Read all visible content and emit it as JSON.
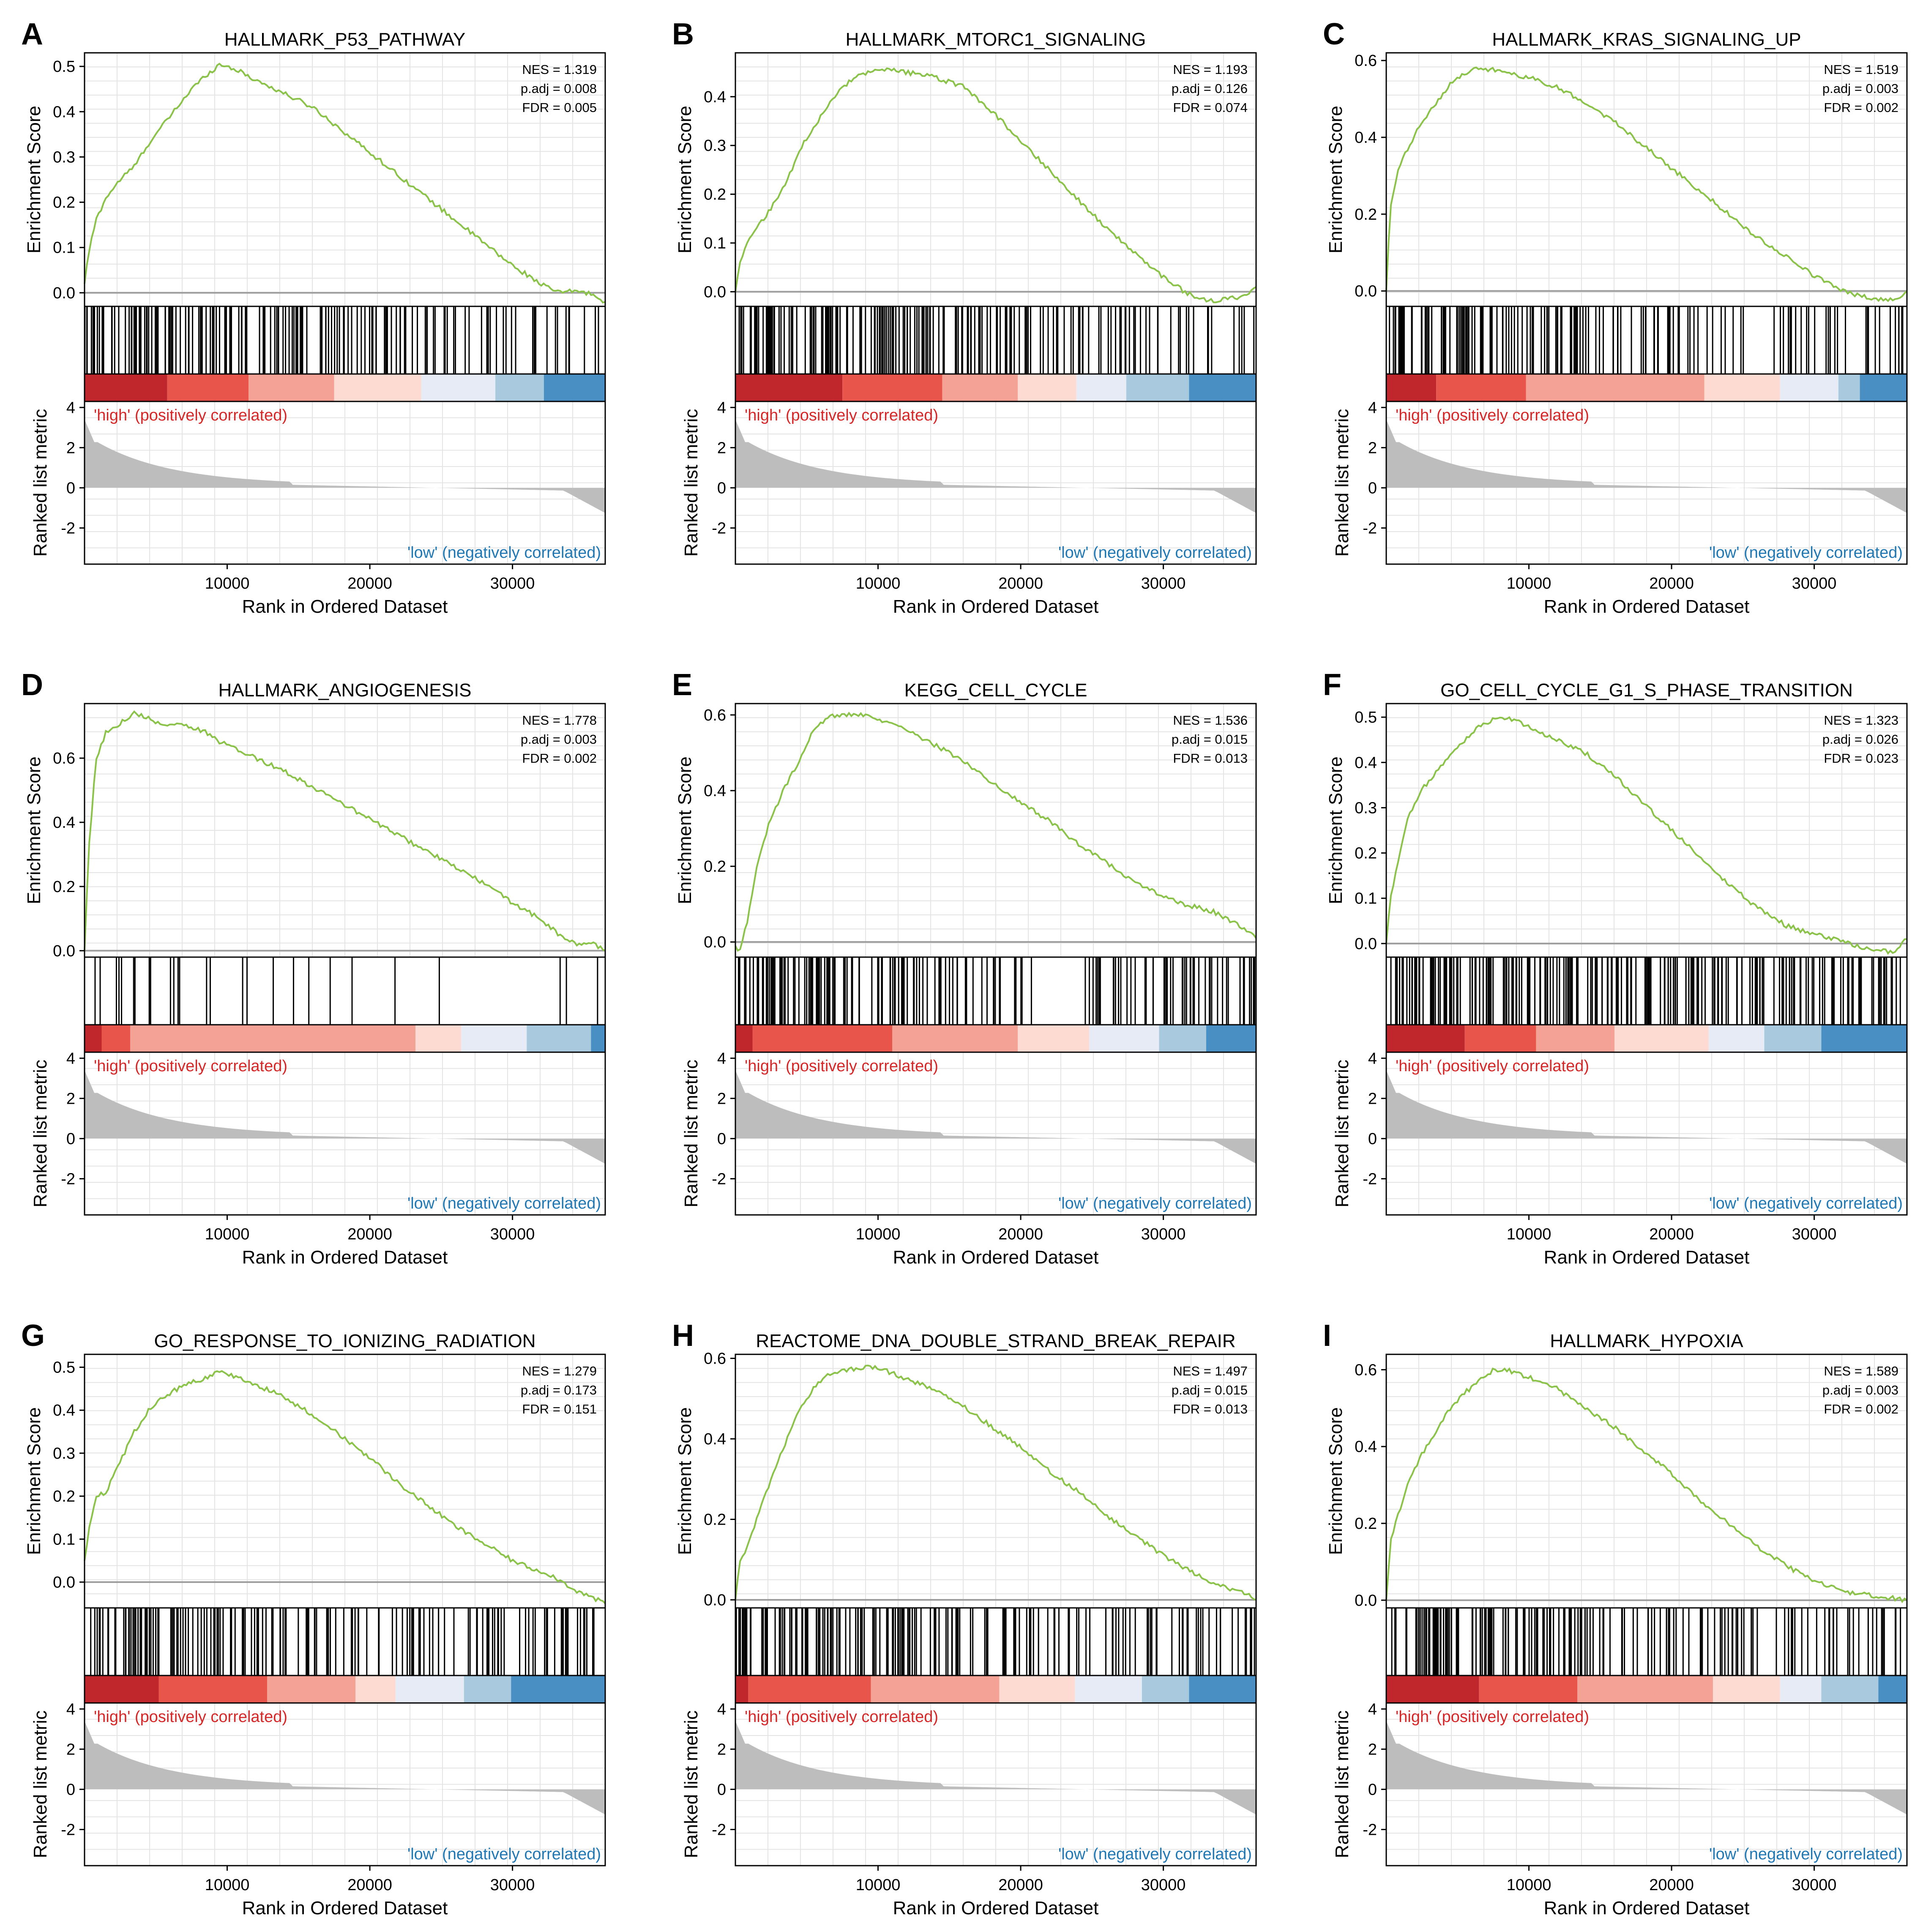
{
  "figure": {
    "xlabel": "Rank in Ordered Dataset",
    "ylabel_es": "Enrichment Score",
    "ylabel_rank": "Ranked list metric",
    "high_label": "'high' (positively correlated)",
    "low_label": "'low' (negatively correlated)",
    "x_ticks": [
      10000,
      20000,
      30000
    ],
    "x_max": 36500,
    "rank_ticks": [
      4,
      2,
      0,
      -2
    ],
    "rank_range": [
      -3.8,
      4.3
    ],
    "colors": {
      "es_line": "#8bc34a",
      "high_text": "#d62728",
      "low_text": "#1f77b4",
      "rank_fill": "#bdbdbd",
      "zero_line": "#9e9e9e"
    },
    "heat_colors": [
      "#c0272d",
      "#e8554b",
      "#f4a196",
      "#fddbd2",
      "#e6ebf5",
      "#a9c9de",
      "#4a8fc4"
    ]
  },
  "chart_data": [
    {
      "type": "line",
      "letter": "A",
      "title": "HALLMARK_P53_PATHWAY",
      "nes": "NES = 1.319",
      "padj": "p.adj = 0.008",
      "fdr": "FDR = 0.005",
      "ylim": [
        -0.03,
        0.53
      ],
      "yticks": [
        "0.0",
        "0.1",
        "0.2",
        "0.3",
        "0.4",
        "0.5"
      ],
      "x": [
        0,
        300,
        800,
        1500,
        2500,
        3500,
        4500,
        5500,
        6500,
        7500,
        8500,
        9500,
        10500,
        12000,
        14000,
        16000,
        18000,
        20000,
        22000,
        24000,
        26000,
        28000,
        30000,
        31500,
        32500,
        33500,
        34500,
        35500,
        36500
      ],
      "values": [
        0.02,
        0.09,
        0.16,
        0.21,
        0.25,
        0.28,
        0.33,
        0.37,
        0.41,
        0.45,
        0.48,
        0.505,
        0.495,
        0.47,
        0.44,
        0.41,
        0.36,
        0.31,
        0.26,
        0.21,
        0.16,
        0.11,
        0.06,
        0.03,
        0.01,
        0.0,
        0.005,
        -0.003,
        -0.02
      ],
      "hit_density": [
        0.95,
        0.9,
        0.85,
        0.75,
        0.7,
        0.6,
        0.5,
        0.4,
        0.3
      ],
      "heat_breaks": [
        0,
        5800,
        11500,
        17500,
        23600,
        28800,
        32200,
        36500
      ]
    },
    {
      "type": "line",
      "letter": "B",
      "title": "HALLMARK_MTORC1_SIGNALING",
      "nes": "NES = 1.193",
      "padj": "p.adj = 0.126",
      "fdr": "FDR = 0.074",
      "ylim": [
        -0.03,
        0.49
      ],
      "yticks": [
        "0.0",
        "0.1",
        "0.2",
        "0.3",
        "0.4"
      ],
      "x": [
        0,
        300,
        800,
        1500,
        2500,
        3500,
        4500,
        5500,
        6500,
        7500,
        8500,
        9500,
        10500,
        12000,
        14000,
        16000,
        18000,
        20000,
        22000,
        24000,
        26000,
        28000,
        30000,
        31500,
        32500,
        33500,
        34500,
        35500,
        36500
      ],
      "values": [
        0.0,
        0.06,
        0.1,
        0.13,
        0.17,
        0.22,
        0.29,
        0.34,
        0.38,
        0.42,
        0.44,
        0.45,
        0.455,
        0.45,
        0.44,
        0.42,
        0.37,
        0.31,
        0.25,
        0.19,
        0.13,
        0.08,
        0.03,
        0.0,
        -0.015,
        -0.02,
        -0.015,
        -0.01,
        0.01
      ],
      "hit_density": [
        1.0,
        0.95,
        0.9,
        0.8,
        0.7,
        0.6,
        0.5,
        0.4,
        0.3
      ],
      "heat_breaks": [
        0,
        7500,
        14500,
        19800,
        23900,
        27400,
        31800,
        36500
      ]
    },
    {
      "type": "line",
      "letter": "C",
      "title": "HALLMARK_KRAS_SIGNALING_UP",
      "nes": "NES = 1.519",
      "padj": "p.adj = 0.003",
      "fdr": "FDR = 0.002",
      "ylim": [
        -0.04,
        0.62
      ],
      "yticks": [
        "0.0",
        "0.2",
        "0.4",
        "0.6"
      ],
      "x": [
        0,
        300,
        800,
        1500,
        2500,
        3500,
        4500,
        5500,
        6500,
        7500,
        8500,
        9500,
        10500,
        12000,
        14000,
        16000,
        18000,
        20000,
        22000,
        24000,
        26000,
        28000,
        30000,
        31500,
        32500,
        33500,
        34500,
        35500,
        36500
      ],
      "values": [
        0.0,
        0.22,
        0.31,
        0.37,
        0.44,
        0.49,
        0.54,
        0.565,
        0.58,
        0.575,
        0.565,
        0.56,
        0.55,
        0.53,
        0.49,
        0.44,
        0.38,
        0.32,
        0.26,
        0.2,
        0.14,
        0.09,
        0.04,
        0.01,
        -0.005,
        -0.015,
        -0.02,
        -0.025,
        0.0
      ],
      "hit_density": [
        0.95,
        0.9,
        0.8,
        0.7,
        0.55,
        0.4,
        0.25,
        0.45,
        0.4
      ],
      "heat_breaks": [
        0,
        3500,
        9800,
        22300,
        27600,
        31700,
        33200,
        36500
      ]
    },
    {
      "type": "line",
      "letter": "D",
      "title": "HALLMARK_ANGIOGENESIS",
      "nes": "NES = 1.778",
      "padj": "p.adj = 0.003",
      "fdr": "FDR = 0.002",
      "ylim": [
        -0.02,
        0.77
      ],
      "yticks": [
        "0.0",
        "0.2",
        "0.4",
        "0.6"
      ],
      "x": [
        0,
        300,
        800,
        1500,
        2500,
        3500,
        4500,
        5500,
        6500,
        7500,
        8500,
        9500,
        10500,
        12000,
        14000,
        16000,
        18000,
        20000,
        22000,
        24000,
        26000,
        28000,
        30000,
        31500,
        32500,
        33500,
        34500,
        35500,
        36500
      ],
      "values": [
        0.0,
        0.32,
        0.59,
        0.68,
        0.71,
        0.74,
        0.725,
        0.7,
        0.71,
        0.695,
        0.68,
        0.65,
        0.63,
        0.6,
        0.56,
        0.51,
        0.46,
        0.41,
        0.36,
        0.31,
        0.26,
        0.21,
        0.15,
        0.11,
        0.08,
        0.04,
        0.02,
        0.025,
        0.0
      ],
      "hit_density": [
        0.3,
        0.2,
        0.15,
        0.12,
        0.08,
        0.03,
        0.02,
        0.0,
        0.1
      ],
      "heat_breaks": [
        0,
        1200,
        3200,
        23200,
        26400,
        31000,
        35500,
        36500
      ]
    },
    {
      "type": "line",
      "letter": "E",
      "title": "KEGG_CELL_CYCLE",
      "nes": "NES = 1.536",
      "padj": "p.adj = 0.015",
      "fdr": "FDR = 0.013",
      "ylim": [
        -0.04,
        0.63
      ],
      "yticks": [
        "0.0",
        "0.2",
        "0.4",
        "0.6"
      ],
      "x": [
        0,
        300,
        800,
        1500,
        2500,
        3500,
        4500,
        5500,
        6500,
        7500,
        8500,
        9500,
        10500,
        12000,
        14000,
        16000,
        18000,
        20000,
        22000,
        24000,
        26000,
        28000,
        30000,
        31500,
        32500,
        33500,
        34500,
        35500,
        36500
      ],
      "values": [
        -0.01,
        -0.025,
        0.05,
        0.2,
        0.33,
        0.41,
        0.48,
        0.56,
        0.595,
        0.6,
        0.6,
        0.595,
        0.58,
        0.56,
        0.52,
        0.48,
        0.42,
        0.37,
        0.32,
        0.26,
        0.21,
        0.16,
        0.12,
        0.1,
        0.09,
        0.08,
        0.06,
        0.04,
        0.01
      ],
      "hit_density": [
        1.0,
        0.95,
        0.85,
        0.65,
        0.45,
        0.05,
        0.55,
        0.7,
        0.6
      ],
      "heat_breaks": [
        0,
        1200,
        11000,
        19800,
        24800,
        29700,
        33000,
        36500
      ]
    },
    {
      "type": "line",
      "letter": "F",
      "title": "GO_CELL_CYCLE_G1_S_PHASE_TRANSITION",
      "nes": "NES = 1.323",
      "padj": "p.adj = 0.026",
      "fdr": "FDR = 0.023",
      "ylim": [
        -0.03,
        0.53
      ],
      "yticks": [
        "0.0",
        "0.1",
        "0.2",
        "0.3",
        "0.4",
        "0.5"
      ],
      "x": [
        0,
        300,
        800,
        1500,
        2500,
        3500,
        4500,
        5500,
        6500,
        7500,
        8500,
        9500,
        10500,
        12000,
        14000,
        16000,
        18000,
        20000,
        22000,
        24000,
        26000,
        28000,
        30000,
        31500,
        32500,
        33500,
        34500,
        35500,
        36500
      ],
      "values": [
        0.0,
        0.1,
        0.18,
        0.28,
        0.34,
        0.38,
        0.42,
        0.45,
        0.48,
        0.495,
        0.5,
        0.485,
        0.47,
        0.45,
        0.42,
        0.37,
        0.31,
        0.25,
        0.19,
        0.13,
        0.08,
        0.04,
        0.02,
        0.01,
        0.0,
        -0.01,
        -0.015,
        -0.02,
        0.01
      ],
      "hit_density": [
        1.0,
        1.0,
        0.95,
        0.9,
        0.85,
        0.8,
        0.75,
        0.7,
        0.7
      ],
      "heat_breaks": [
        0,
        5500,
        10500,
        16000,
        22600,
        26500,
        30500,
        36500
      ]
    },
    {
      "type": "line",
      "letter": "G",
      "title": "GO_RESPONSE_TO_IONIZING_RADIATION",
      "nes": "NES = 1.279",
      "padj": "p.adj = 0.173",
      "fdr": "FDR = 0.151",
      "ylim": [
        -0.06,
        0.53
      ],
      "yticks": [
        "0.0",
        "0.1",
        "0.2",
        "0.3",
        "0.4",
        "0.5"
      ],
      "x": [
        0,
        300,
        800,
        1500,
        2500,
        3500,
        4500,
        5500,
        6500,
        7500,
        8500,
        9500,
        10500,
        12000,
        14000,
        16000,
        18000,
        20000,
        22000,
        24000,
        26000,
        28000,
        30000,
        31500,
        32500,
        33500,
        34500,
        35500,
        36500
      ],
      "values": [
        0.05,
        0.12,
        0.2,
        0.21,
        0.28,
        0.35,
        0.4,
        0.43,
        0.45,
        0.465,
        0.475,
        0.49,
        0.48,
        0.46,
        0.43,
        0.39,
        0.34,
        0.29,
        0.23,
        0.18,
        0.13,
        0.09,
        0.05,
        0.03,
        0.02,
        0.0,
        -0.02,
        -0.035,
        -0.05
      ],
      "hit_density": [
        0.9,
        0.85,
        0.75,
        0.65,
        0.55,
        0.5,
        0.45,
        0.55,
        0.6
      ],
      "heat_breaks": [
        0,
        5200,
        12800,
        19000,
        21800,
        26600,
        29900,
        36500
      ]
    },
    {
      "type": "line",
      "letter": "H",
      "title": "REACTOME_DNA_DOUBLE_STRAND_BREAK_REPAIR",
      "nes": "NES = 1.497",
      "padj": "p.adj = 0.015",
      "fdr": "FDR = 0.013",
      "ylim": [
        -0.02,
        0.61
      ],
      "yticks": [
        "0.0",
        "0.2",
        "0.4",
        "0.6"
      ],
      "x": [
        0,
        300,
        800,
        1500,
        2500,
        3500,
        4500,
        5500,
        6500,
        7500,
        8500,
        9500,
        10500,
        12000,
        14000,
        16000,
        18000,
        20000,
        22000,
        24000,
        26000,
        28000,
        30000,
        31500,
        32500,
        33500,
        34500,
        35500,
        36500
      ],
      "values": [
        0.0,
        0.09,
        0.13,
        0.2,
        0.3,
        0.39,
        0.47,
        0.53,
        0.56,
        0.57,
        0.575,
        0.58,
        0.57,
        0.55,
        0.52,
        0.48,
        0.43,
        0.38,
        0.32,
        0.27,
        0.21,
        0.16,
        0.11,
        0.08,
        0.06,
        0.04,
        0.03,
        0.02,
        0.0
      ],
      "hit_density": [
        1.0,
        0.95,
        0.85,
        0.75,
        0.6,
        0.5,
        0.4,
        0.5,
        0.55
      ],
      "heat_breaks": [
        0,
        900,
        9500,
        18500,
        23800,
        28500,
        31800,
        36500
      ]
    },
    {
      "type": "line",
      "letter": "I",
      "title": "HALLMARK_HYPOXIA",
      "nes": "NES = 1.589",
      "padj": "p.adj = 0.003",
      "fdr": "FDR = 0.002",
      "ylim": [
        -0.02,
        0.64
      ],
      "yticks": [
        "0.0",
        "0.2",
        "0.4",
        "0.6"
      ],
      "x": [
        0,
        300,
        800,
        1500,
        2500,
        3500,
        4500,
        5500,
        6500,
        7500,
        8500,
        9500,
        10500,
        12000,
        14000,
        16000,
        18000,
        20000,
        22000,
        24000,
        26000,
        28000,
        30000,
        31500,
        32500,
        33500,
        34500,
        35500,
        36500
      ],
      "values": [
        0.0,
        0.15,
        0.22,
        0.3,
        0.38,
        0.44,
        0.5,
        0.54,
        0.57,
        0.6,
        0.6,
        0.585,
        0.575,
        0.55,
        0.5,
        0.45,
        0.39,
        0.33,
        0.26,
        0.2,
        0.14,
        0.09,
        0.05,
        0.03,
        0.02,
        0.015,
        0.01,
        0.005,
        0.0
      ],
      "hit_density": [
        1.0,
        0.95,
        0.85,
        0.7,
        0.6,
        0.5,
        0.4,
        0.45,
        0.45
      ],
      "heat_breaks": [
        0,
        6500,
        13400,
        22900,
        27600,
        30500,
        34500,
        36500
      ]
    }
  ]
}
